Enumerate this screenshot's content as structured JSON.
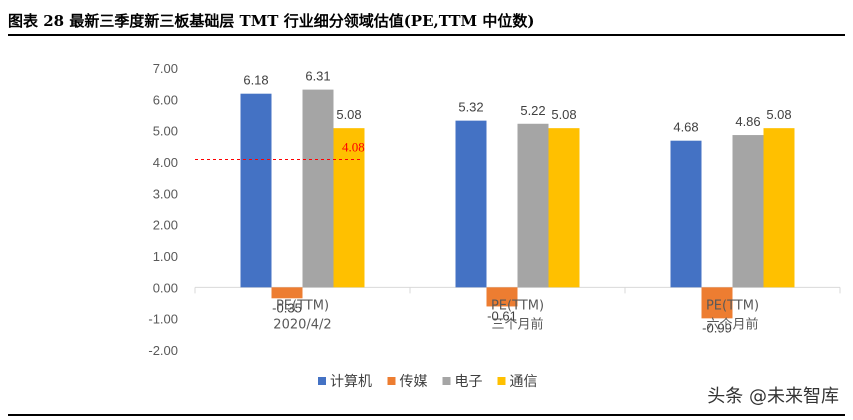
{
  "title": "图表 28 最新三季度新三板基础层 TMT 行业细分领域估值(PE,TTM 中位数)",
  "watermark": "头条 @未来智库",
  "chart_data": {
    "type": "bar",
    "categories": [
      "PE(TTM)\n2020/4/2",
      "PE(TTM)\n三个月前",
      "PE(TTM)\n六个月前"
    ],
    "series": [
      {
        "name": "计算机",
        "color": "#4472C4",
        "values": [
          6.18,
          5.32,
          4.68
        ]
      },
      {
        "name": "传媒",
        "color": "#ED7D31",
        "values": [
          -0.35,
          -0.61,
          -0.99
        ]
      },
      {
        "name": "电子",
        "color": "#A5A5A5",
        "values": [
          6.31,
          5.22,
          4.86
        ]
      },
      {
        "name": "通信",
        "color": "#FFC000",
        "values": [
          5.08,
          5.08,
          5.08
        ]
      }
    ],
    "ylim": [
      -2,
      7
    ],
    "ytick_step": 1,
    "ytick_labels": [
      "-2.00",
      "-1.00",
      "0.00",
      "1.00",
      "2.00",
      "3.00",
      "4.00",
      "5.00",
      "6.00",
      "7.00"
    ],
    "reference_line": {
      "value": 4.08,
      "label": "4.08",
      "color": "#FF0000",
      "style": "dashed"
    },
    "legend_position": "bottom",
    "grid": false
  }
}
